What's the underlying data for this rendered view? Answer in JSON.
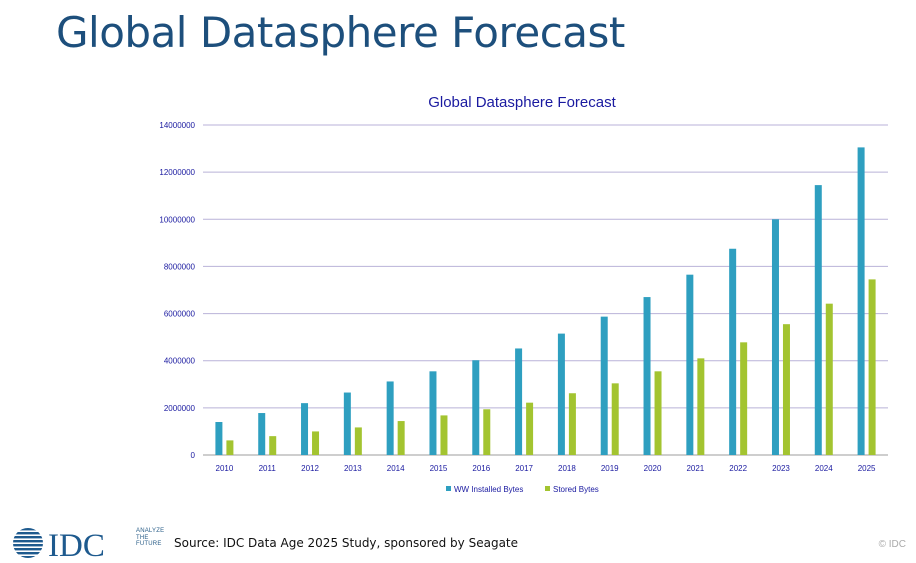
{
  "slide": {
    "title": "Global Datasphere Forecast"
  },
  "chart_data": {
    "type": "bar",
    "title": "Global Datasphere Forecast",
    "xlabel": "",
    "ylabel": "",
    "categories": [
      "2010",
      "2011",
      "2012",
      "2013",
      "2014",
      "2015",
      "2016",
      "2017",
      "2018",
      "2019",
      "2020",
      "2021",
      "2022",
      "2023",
      "2024",
      "2025"
    ],
    "series": [
      {
        "name": "WW Installed Bytes",
        "color": "#2e9fc0",
        "values": [
          1400000,
          1780000,
          2200000,
          2650000,
          3120000,
          3550000,
          4020000,
          4520000,
          5150000,
          5870000,
          6700000,
          7650000,
          8750000,
          10000000,
          11450000,
          13050000
        ]
      },
      {
        "name": "Stored Bytes",
        "color": "#a3c430",
        "values": [
          620000,
          800000,
          1000000,
          1170000,
          1440000,
          1680000,
          1940000,
          2220000,
          2620000,
          3040000,
          3550000,
          4100000,
          4780000,
          5550000,
          6420000,
          7450000
        ]
      }
    ],
    "ylim": [
      0,
      14000000
    ],
    "yticks": [
      "0",
      "2000000",
      "4000000",
      "6000000",
      "8000000",
      "10000000",
      "12000000",
      "14000000"
    ],
    "grid": true,
    "legend_position": "bottom"
  },
  "footer": {
    "logo_text": "IDC",
    "tagline": "ANALYZE\nTHE\nFUTURE",
    "source": "Source: IDC Data Age 2025 Study, sponsored by Seagate",
    "copyright": "© IDC"
  },
  "colors": {
    "title": "#1d4f7c",
    "chart_title": "#1a1aa0",
    "grid": "#b9b2d8",
    "axis_text": "#1a1aa0"
  }
}
